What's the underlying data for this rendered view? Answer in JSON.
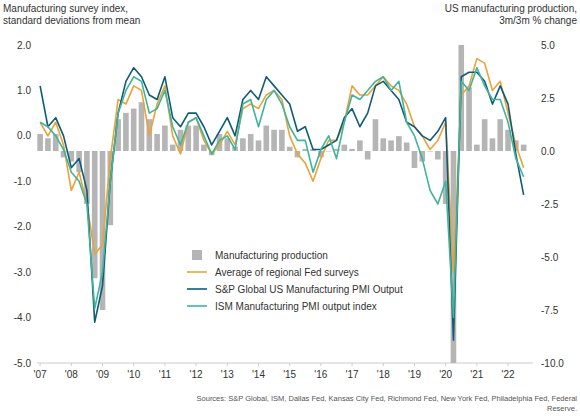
{
  "chart_data": {
    "type": "line",
    "y_label": [
      "Manufacturing survey index,",
      "standard deviations from mean"
    ],
    "y2_label": [
      "US manufacturing production,",
      "3m/3m % change"
    ],
    "annotations": [
      "Sources: S&P Global, ISM, Dallas Fed, Kansas City Fed, Richmond Fed, New York Fed, Philadelphia Fed, Federal",
      "Reserve."
    ],
    "x": [
      2007,
      2007.25,
      2007.5,
      2007.75,
      2008,
      2008.25,
      2008.5,
      2008.75,
      2009,
      2009.25,
      2009.5,
      2009.75,
      2010,
      2010.25,
      2010.5,
      2010.75,
      2011,
      2011.25,
      2011.5,
      2011.75,
      2012,
      2012.25,
      2012.5,
      2012.75,
      2013,
      2013.25,
      2013.5,
      2013.75,
      2014,
      2014.25,
      2014.5,
      2014.75,
      2015,
      2015.25,
      2015.5,
      2015.75,
      2016,
      2016.25,
      2016.5,
      2016.75,
      2017,
      2017.25,
      2017.5,
      2017.75,
      2018,
      2018.25,
      2018.5,
      2018.75,
      2019,
      2019.25,
      2019.5,
      2019.75,
      2020,
      2020.25,
      2020.5,
      2020.75,
      2021,
      2021.25,
      2021.5,
      2021.75,
      2022,
      2022.25,
      2022.5
    ],
    "series": [
      {
        "name": "Manufacturing production",
        "type": "bar",
        "axis": "y2",
        "color": "#b5b5b5",
        "values": [
          0.8,
          0.6,
          0.8,
          -0.3,
          -0.5,
          -1.0,
          -2.5,
          -6.0,
          -7.5,
          -3.5,
          1.5,
          1.8,
          2.0,
          2.3,
          1.5,
          0.8,
          1.2,
          0.3,
          1.0,
          1.2,
          1.2,
          0.3,
          -0.2,
          0.8,
          0.6,
          0.2,
          0.6,
          0.8,
          0.5,
          1.2,
          1.0,
          1.0,
          0.2,
          -0.3,
          0.1,
          0.1,
          -0.3,
          0.0,
          0.1,
          0.3,
          0.1,
          0.5,
          -0.4,
          1.5,
          0.6,
          0.5,
          0.7,
          0.4,
          -0.8,
          -0.5,
          0.0,
          -0.4,
          -2.5,
          -10.0,
          5.0,
          3.0,
          0.3,
          1.5,
          0.6,
          1.5,
          1.0,
          0.5,
          0.3
        ]
      },
      {
        "name": "Average of regional Fed surveys",
        "type": "line",
        "color": "#eba23a",
        "values": [
          0.3,
          0.0,
          0.3,
          -0.2,
          -1.2,
          -0.8,
          -1.5,
          -2.6,
          -2.4,
          -0.5,
          0.8,
          0.7,
          1.1,
          1.0,
          0.0,
          0.7,
          1.1,
          0.0,
          -0.4,
          0.3,
          0.4,
          -0.1,
          -0.4,
          -0.2,
          0.1,
          -0.2,
          0.6,
          0.7,
          0.6,
          0.9,
          1.0,
          0.8,
          0.0,
          -0.4,
          -0.6,
          -1.0,
          -0.5,
          -0.1,
          -0.1,
          0.3,
          1.1,
          0.9,
          0.9,
          1.1,
          1.3,
          1.1,
          1.0,
          0.7,
          0.2,
          0.0,
          -0.3,
          -0.1,
          0.3,
          -3.0,
          0.9,
          1.1,
          1.7,
          1.6,
          1.0,
          1.2,
          0.5,
          -0.2,
          -0.7
        ]
      },
      {
        "name": "S&P Global US Manufacturing PMI Output",
        "type": "line",
        "color": "#0f5b78",
        "values": [
          1.1,
          0.2,
          0.4,
          0.0,
          -0.7,
          -0.5,
          -1.2,
          -4.1,
          -3.3,
          -1.0,
          0.5,
          1.2,
          1.5,
          1.3,
          0.9,
          0.8,
          1.3,
          0.4,
          0.2,
          0.5,
          0.5,
          0.2,
          -0.2,
          0.1,
          0.4,
          0.0,
          0.8,
          1.0,
          0.8,
          1.3,
          1.1,
          0.9,
          0.7,
          0.1,
          0.2,
          -0.3,
          -0.3,
          -0.2,
          -0.1,
          0.4,
          0.6,
          0.2,
          0.5,
          1.1,
          1.2,
          1.0,
          0.8,
          0.3,
          0.2,
          0.0,
          -0.1,
          0.1,
          0.4,
          -4.5,
          1.3,
          1.4,
          1.4,
          1.2,
          0.7,
          1.1,
          0.7,
          -0.4,
          -1.3
        ]
      },
      {
        "name": "ISM Manufacturing PMI output index",
        "type": "line",
        "color": "#3fb49b",
        "values": [
          0.3,
          0.2,
          0.0,
          -0.3,
          -0.8,
          -1.0,
          -1.5,
          -3.8,
          -3.0,
          -1.0,
          0.5,
          1.0,
          1.3,
          1.2,
          0.5,
          0.6,
          1.0,
          0.2,
          -0.2,
          0.3,
          0.4,
          0.0,
          -0.4,
          -0.1,
          0.0,
          -0.3,
          0.7,
          0.8,
          0.2,
          0.8,
          1.0,
          0.7,
          0.2,
          -0.1,
          -0.1,
          -0.8,
          -0.3,
          0.0,
          -0.5,
          0.3,
          0.9,
          0.8,
          1.0,
          1.2,
          1.3,
          1.0,
          1.2,
          0.3,
          0.0,
          -0.5,
          -1.2,
          -1.5,
          -1.0,
          -4.0,
          1.2,
          1.0,
          1.5,
          1.1,
          0.8,
          0.8,
          0.3,
          -0.5,
          -0.9
        ]
      }
    ],
    "xlim": [
      2006.9,
      2022.8
    ],
    "xticks": [
      {
        "value": 2007,
        "label": "'07"
      },
      {
        "value": 2008,
        "label": "'08"
      },
      {
        "value": 2009,
        "label": "'09"
      },
      {
        "value": 2010,
        "label": "'10"
      },
      {
        "value": 2011,
        "label": "'11"
      },
      {
        "value": 2012,
        "label": "'12"
      },
      {
        "value": 2013,
        "label": "'13"
      },
      {
        "value": 2014,
        "label": "'14"
      },
      {
        "value": 2015,
        "label": "'15"
      },
      {
        "value": 2016,
        "label": "'16"
      },
      {
        "value": 2017,
        "label": "'17"
      },
      {
        "value": 2018,
        "label": "'18"
      },
      {
        "value": 2019,
        "label": "'19"
      },
      {
        "value": 2020,
        "label": "'20"
      },
      {
        "value": 2021,
        "label": "'21"
      },
      {
        "value": 2022,
        "label": "'22"
      }
    ],
    "ylim": [
      -5,
      2
    ],
    "yticks": [
      {
        "value": 2,
        "label": "2.0"
      },
      {
        "value": 1,
        "label": "1.0"
      },
      {
        "value": 0,
        "label": "0.0"
      },
      {
        "value": -1,
        "label": "-1.0"
      },
      {
        "value": -2,
        "label": "-2.0"
      },
      {
        "value": -3,
        "label": "-3.0"
      },
      {
        "value": -4,
        "label": "-4.0"
      },
      {
        "value": -5,
        "label": "-5.0"
      }
    ],
    "y2lim": [
      -10,
      5
    ],
    "y2ticks": [
      {
        "value": 5,
        "label": "5.0"
      },
      {
        "value": 2.5,
        "label": "2.5"
      },
      {
        "value": 0,
        "label": "0.0"
      },
      {
        "value": -2.5,
        "label": "-2.5"
      },
      {
        "value": -5,
        "label": "-5.0"
      },
      {
        "value": -7.5,
        "label": "-7.5"
      },
      {
        "value": -10,
        "label": "-10.0"
      }
    ],
    "grid": false,
    "legend": "bottom-left"
  }
}
